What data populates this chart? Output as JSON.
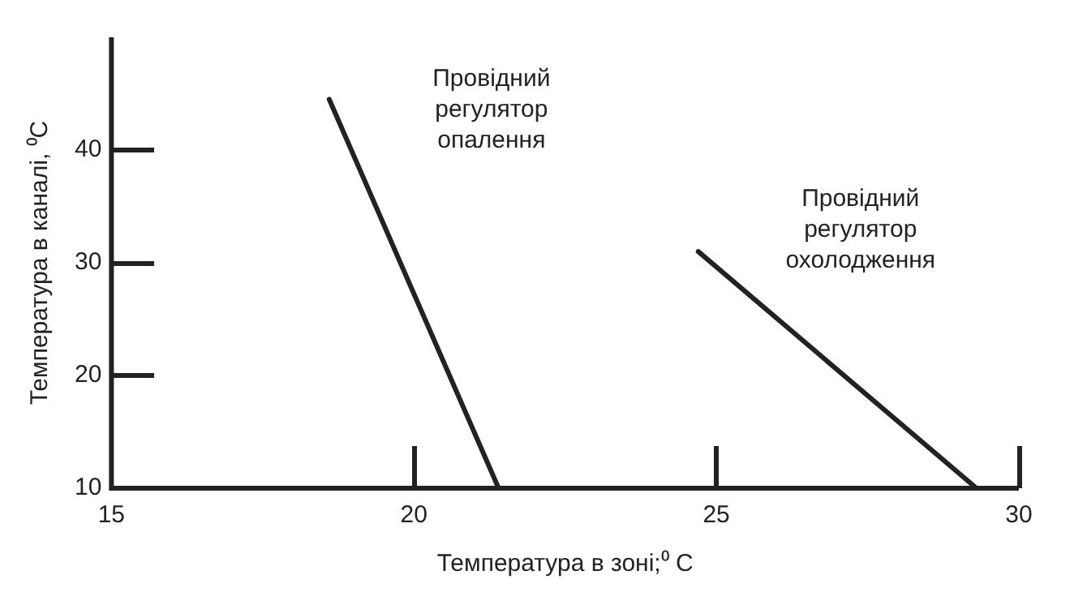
{
  "chart_data": {
    "type": "line",
    "xlabel": "Температура в зоні;⁰ C",
    "ylabel": "Температура в каналі, ⁰C",
    "xlim": [
      15,
      30
    ],
    "xticks": [
      15,
      20,
      25,
      30
    ],
    "ylim": [
      10,
      50
    ],
    "yticks": [
      10,
      20,
      30,
      40
    ],
    "grid": false,
    "legend": false,
    "marker": "none",
    "series": [
      {
        "name": "Провідний регулятор опалення",
        "color": "#222222",
        "x": [
          18.6,
          21.4
        ],
        "values": [
          44.5,
          10
        ]
      },
      {
        "name": "Провідний регулятор охолодження",
        "color": "#222222",
        "x": [
          24.7,
          29.3
        ],
        "values": [
          31,
          10
        ]
      }
    ]
  }
}
